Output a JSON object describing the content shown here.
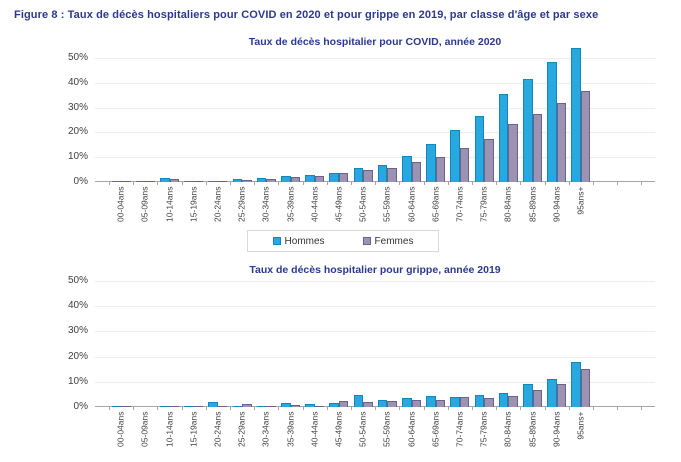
{
  "figure_title": "Figure 8 : Taux de décès hospitaliers pour COVID en 2020 et pour grippe en 2019, par classe d'âge et par sexe",
  "legend": {
    "items": [
      {
        "label": "Hommes",
        "color": "#29A8E0",
        "border": "#1287BB"
      },
      {
        "label": "Femmes",
        "color": "#9C92B2",
        "border": "#6B6189"
      }
    ]
  },
  "colors": {
    "title_blue": "#2B3990",
    "grid": "#E9EDF2",
    "axis": "#A6A6A6",
    "tick_label": "#3F3F3F"
  },
  "chart_data": [
    {
      "type": "bar",
      "title": "Taux de décès hospitalier pour COVID, année 2020",
      "categories": [
        "00-04ans",
        "05-09ans",
        "10-14ans",
        "15-19ans",
        "20-24ans",
        "25-29ans",
        "30-34ans",
        "35-39ans",
        "40-44ans",
        "45-49ans",
        "50-54ans",
        "55-59ans",
        "60-64ans",
        "65-69ans",
        "70-74ans",
        "75-79ans",
        "80-84ans",
        "85-89ans",
        "90-94ans",
        "95ans+"
      ],
      "series": [
        {
          "name": "Hommes",
          "color": "#29A8E0",
          "border": "#1287BB",
          "values": [
            0.4,
            0.1,
            1.5,
            0.4,
            0.5,
            1.2,
            1.7,
            2.6,
            3.0,
            3.6,
            5.7,
            6.8,
            10.5,
            15.5,
            20.8,
            26.8,
            35.3,
            41.5,
            48.3,
            54.0
          ]
        },
        {
          "name": "Femmes",
          "color": "#9C92B2",
          "border": "#6B6189",
          "values": [
            0.2,
            0.1,
            1.4,
            0.3,
            0.3,
            0.9,
            1.2,
            2.0,
            2.6,
            3.6,
            4.8,
            5.6,
            7.9,
            10.0,
            13.8,
            17.5,
            23.4,
            27.4,
            31.7,
            36.6
          ]
        }
      ],
      "xlabel": "",
      "ylabel": "",
      "ylim": [
        0,
        50
      ],
      "ytick_step": 10,
      "y_ticks": [
        "0%",
        "10%",
        "20%",
        "30%",
        "40%",
        "50%"
      ],
      "grid": true,
      "legend_position": "below"
    },
    {
      "type": "bar",
      "title": "Taux de décès hospitalier pour grippe, année 2019",
      "categories": [
        "00-04ans",
        "05-09ans",
        "10-14ans",
        "15-19ans",
        "20-24ans",
        "25-29ans",
        "30-34ans",
        "35-39ans",
        "40-44ans",
        "45-49ans",
        "50-54ans",
        "55-59ans",
        "60-64ans",
        "65-69ans",
        "70-74ans",
        "75-79ans",
        "80-84ans",
        "85-89ans",
        "90-94ans",
        "95ans+"
      ],
      "series": [
        {
          "name": "Hommes",
          "color": "#29A8E0",
          "border": "#1287BB",
          "values": [
            0.4,
            0.0,
            0.1,
            0.4,
            2.0,
            0.2,
            0.6,
            1.6,
            1.1,
            1.5,
            4.6,
            2.7,
            3.6,
            4.5,
            4.1,
            4.8,
            5.5,
            9.0,
            11.3,
            18.0
          ]
        },
        {
          "name": "Femmes",
          "color": "#9C92B2",
          "border": "#6B6189",
          "values": [
            0.1,
            0.0,
            0.1,
            0.2,
            0.1,
            1.0,
            0.6,
            0.7,
            0.4,
            2.3,
            2.1,
            2.5,
            2.7,
            2.7,
            4.1,
            3.6,
            4.4,
            6.6,
            9.1,
            15.0
          ]
        }
      ],
      "xlabel": "",
      "ylabel": "",
      "ylim": [
        0,
        50
      ],
      "ytick_step": 10,
      "y_ticks": [
        "0%",
        "10%",
        "20%",
        "30%",
        "40%",
        "50%"
      ],
      "grid": true,
      "legend_position": "none"
    }
  ]
}
